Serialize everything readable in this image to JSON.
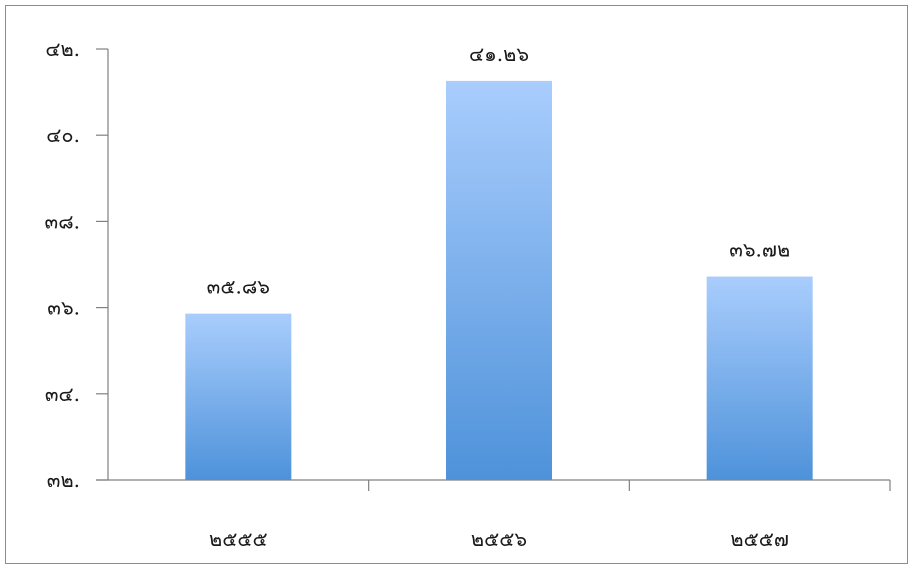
{
  "chart_data": {
    "type": "bar",
    "categories": [
      "๒๕๕๕",
      "๒๕๕๖",
      "๒๕๕๗"
    ],
    "values": [
      35.86,
      41.26,
      36.72
    ],
    "value_labels": [
      "๓๕.๘๖",
      "๔๑.๒๖",
      "๓๖.๗๒"
    ],
    "ylim": [
      32,
      42
    ],
    "yticks": [
      32,
      34,
      36,
      38,
      40,
      42
    ],
    "ytick_labels": [
      "๓๒.",
      "๓๔.",
      "๓๖.",
      "๓๘.",
      "๔๐.",
      "๔๒."
    ],
    "title": "",
    "xlabel": "",
    "ylabel": "",
    "grid": false,
    "colors": {
      "bar_top": "#a9cdfd",
      "bar_bottom": "#4e92da",
      "axis": "#808080",
      "frame": "#8c8c8c"
    }
  }
}
